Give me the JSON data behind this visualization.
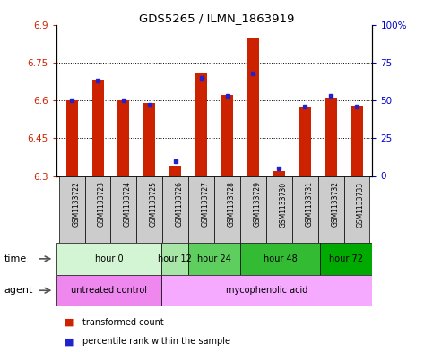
{
  "title": "GDS5265 / ILMN_1863919",
  "samples": [
    "GSM1133722",
    "GSM1133723",
    "GSM1133724",
    "GSM1133725",
    "GSM1133726",
    "GSM1133727",
    "GSM1133728",
    "GSM1133729",
    "GSM1133730",
    "GSM1133731",
    "GSM1133732",
    "GSM1133733"
  ],
  "red_values": [
    6.6,
    6.68,
    6.6,
    6.59,
    6.34,
    6.71,
    6.62,
    6.85,
    6.32,
    6.57,
    6.61,
    6.58
  ],
  "blue_values_pct": [
    50,
    63,
    50,
    47,
    10,
    65,
    53,
    68,
    5,
    46,
    53,
    46
  ],
  "ylim_left": [
    6.3,
    6.9
  ],
  "ylim_right": [
    0,
    100
  ],
  "yticks_left": [
    6.3,
    6.45,
    6.6,
    6.75,
    6.9
  ],
  "yticks_right": [
    0,
    25,
    50,
    75,
    100
  ],
  "ytick_labels_left": [
    "6.3",
    "6.45",
    "6.6",
    "6.75",
    "6.9"
  ],
  "ytick_labels_right": [
    "0",
    "25",
    "50",
    "75",
    "100%"
  ],
  "grid_values": [
    6.45,
    6.6,
    6.75
  ],
  "time_groups": [
    {
      "label": "hour 0",
      "start": 0,
      "end": 3,
      "color": "#d4f5d4"
    },
    {
      "label": "hour 12",
      "start": 4,
      "end": 4,
      "color": "#a8e6a8"
    },
    {
      "label": "hour 24",
      "start": 5,
      "end": 6,
      "color": "#5ecf5e"
    },
    {
      "label": "hour 48",
      "start": 7,
      "end": 9,
      "color": "#33bb33"
    },
    {
      "label": "hour 72",
      "start": 10,
      "end": 11,
      "color": "#00aa00"
    }
  ],
  "agent_groups": [
    {
      "label": "untreated control",
      "start": 0,
      "end": 3,
      "color": "#ee88ee"
    },
    {
      "label": "mycophenolic acid",
      "start": 4,
      "end": 11,
      "color": "#f5aaff"
    }
  ],
  "bar_base": 6.3,
  "red_color": "#cc2200",
  "blue_color": "#2222cc",
  "axis_color_left": "#cc2200",
  "axis_color_right": "#0000cc",
  "bar_width": 0.45,
  "sample_bg_color": "#cccccc"
}
